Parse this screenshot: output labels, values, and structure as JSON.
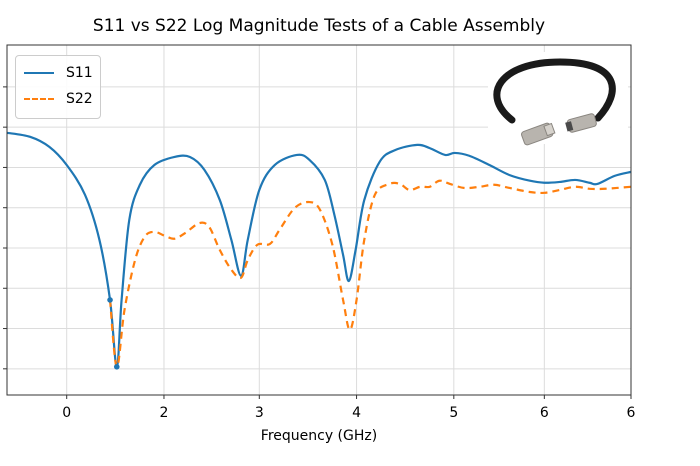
{
  "chart_data": {
    "type": "line",
    "title": "S11 vs S22 Log Magnitude Tests of a Cable Assembly",
    "xlabel": "Frequency (GHz)",
    "ylabel": "",
    "xlim": [
      -0.62,
      5.86
    ],
    "ylim": [
      -0.65,
      8.04
    ],
    "x_ticks": [
      {
        "pos": 0,
        "label": "0"
      },
      {
        "pos": 1.01,
        "label": "2"
      },
      {
        "pos": 2.0,
        "label": "3"
      },
      {
        "pos": 3.01,
        "label": "4"
      },
      {
        "pos": 4.02,
        "label": "5"
      },
      {
        "pos": 4.96,
        "label": "6"
      },
      {
        "pos": 5.86,
        "label": "6"
      }
    ],
    "y_ticks": [
      0,
      1,
      2,
      3,
      4,
      5,
      6,
      7
    ],
    "y_tick_labels_shown": false,
    "grid": true,
    "legend": "top-left",
    "series": [
      {
        "name": "S11",
        "color": "#1f77b4",
        "style": "solid",
        "points": [
          [
            -0.62,
            5.86
          ],
          [
            -0.38,
            5.76
          ],
          [
            -0.18,
            5.51
          ],
          [
            0,
            5.06
          ],
          [
            0.19,
            4.32
          ],
          [
            0.34,
            3.2
          ],
          [
            0.45,
            1.71
          ],
          [
            0.52,
            0.05
          ],
          [
            0.57,
            1.71
          ],
          [
            0.65,
            3.7
          ],
          [
            0.76,
            4.57
          ],
          [
            0.91,
            5.06
          ],
          [
            1.12,
            5.26
          ],
          [
            1.28,
            5.26
          ],
          [
            1.43,
            4.94
          ],
          [
            1.59,
            4.19
          ],
          [
            1.71,
            3.2
          ],
          [
            1.81,
            2.31
          ],
          [
            1.88,
            3.2
          ],
          [
            2.0,
            4.44
          ],
          [
            2.16,
            5.06
          ],
          [
            2.39,
            5.31
          ],
          [
            2.52,
            5.19
          ],
          [
            2.68,
            4.69
          ],
          [
            2.78,
            3.82
          ],
          [
            2.87,
            2.83
          ],
          [
            2.93,
            2.18
          ],
          [
            3.0,
            2.95
          ],
          [
            3.09,
            4.19
          ],
          [
            3.25,
            5.14
          ],
          [
            3.41,
            5.43
          ],
          [
            3.64,
            5.56
          ],
          [
            3.77,
            5.48
          ],
          [
            3.93,
            5.31
          ],
          [
            4.03,
            5.36
          ],
          [
            4.18,
            5.29
          ],
          [
            4.39,
            5.06
          ],
          [
            4.6,
            4.81
          ],
          [
            4.81,
            4.67
          ],
          [
            4.96,
            4.62
          ],
          [
            5.12,
            4.64
          ],
          [
            5.28,
            4.69
          ],
          [
            5.43,
            4.62
          ],
          [
            5.51,
            4.59
          ],
          [
            5.69,
            4.79
          ],
          [
            5.86,
            4.89
          ]
        ]
      },
      {
        "name": "S22",
        "color": "#ff7f0e",
        "style": "dashed",
        "points": [
          [
            0.45,
            1.71
          ],
          [
            0.52,
            0.05
          ],
          [
            0.6,
            1.46
          ],
          [
            0.71,
            2.7
          ],
          [
            0.81,
            3.28
          ],
          [
            0.91,
            3.4
          ],
          [
            1.02,
            3.3
          ],
          [
            1.12,
            3.23
          ],
          [
            1.23,
            3.37
          ],
          [
            1.38,
            3.62
          ],
          [
            1.48,
            3.52
          ],
          [
            1.59,
            2.95
          ],
          [
            1.71,
            2.46
          ],
          [
            1.81,
            2.26
          ],
          [
            1.88,
            2.7
          ],
          [
            1.98,
            3.08
          ],
          [
            2.11,
            3.1
          ],
          [
            2.21,
            3.45
          ],
          [
            2.37,
            4.0
          ],
          [
            2.52,
            4.14
          ],
          [
            2.63,
            3.95
          ],
          [
            2.76,
            3.07
          ],
          [
            2.87,
            1.71
          ],
          [
            2.94,
            0.97
          ],
          [
            3.01,
            1.71
          ],
          [
            3.09,
            3.2
          ],
          [
            3.2,
            4.32
          ],
          [
            3.35,
            4.59
          ],
          [
            3.46,
            4.59
          ],
          [
            3.56,
            4.44
          ],
          [
            3.67,
            4.52
          ],
          [
            3.77,
            4.52
          ],
          [
            3.87,
            4.67
          ],
          [
            3.98,
            4.59
          ],
          [
            4.13,
            4.49
          ],
          [
            4.29,
            4.52
          ],
          [
            4.44,
            4.57
          ],
          [
            4.6,
            4.49
          ],
          [
            4.81,
            4.39
          ],
          [
            4.96,
            4.37
          ],
          [
            5.12,
            4.44
          ],
          [
            5.28,
            4.52
          ],
          [
            5.43,
            4.47
          ],
          [
            5.59,
            4.47
          ],
          [
            5.86,
            4.52
          ]
        ]
      }
    ],
    "markers": [
      [
        0.45,
        1.71
      ],
      [
        0.52,
        0.05
      ]
    ],
    "inset_image": "cable-assembly-photo"
  }
}
